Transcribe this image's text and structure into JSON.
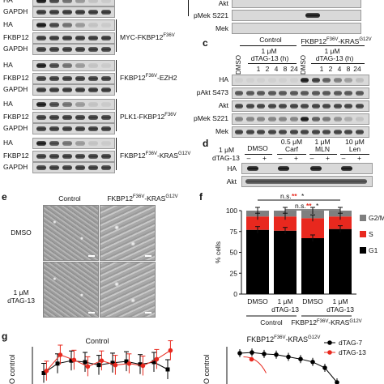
{
  "panel_a_b": {
    "rows": [
      {
        "label": "HA",
        "construct": ""
      },
      {
        "label": "GAPDH",
        "construct": ""
      },
      {
        "label": "HA",
        "construct": "MYC-FKBP12<sup>F36V</sup>"
      },
      {
        "label": "FKBP12",
        "construct": ""
      },
      {
        "label": "GAPDH",
        "construct": ""
      },
      {
        "label": "HA",
        "construct": "FKBP12<sup>F36V</sup>-EZH2"
      },
      {
        "label": "FKBP12",
        "construct": ""
      },
      {
        "label": "GAPDH",
        "construct": ""
      },
      {
        "label": "HA",
        "construct": "PLK1-FKBP12<sup>F36V</sup>"
      },
      {
        "label": "FKBP12",
        "construct": ""
      },
      {
        "label": "GAPDH",
        "construct": ""
      },
      {
        "label": "HA",
        "construct": "FKBP12<sup>F36V</sup>-KRAS<sup>G12V</sup>"
      },
      {
        "label": "FKBP12",
        "construct": ""
      },
      {
        "label": "GAPDH",
        "construct": ""
      }
    ],
    "right_rows": [
      "Akt",
      "pMek S221",
      "Mek"
    ],
    "construct_1": "MYC-FKBP12F36V",
    "construct_2": "FKBP12F36V-EZH2",
    "construct_3": "PLK1-FKBP12F36V",
    "construct_4": "FKBP12F36V-KRASG12V"
  },
  "panel_c": {
    "letter": "c",
    "control": "Control",
    "kras": "FKBP12F36V-KRASG12V",
    "dose": "1 μM",
    "dtag": "dTAG-13 (h)",
    "dmso": "DMSO",
    "times": [
      "1",
      "2",
      "4",
      "8",
      "24"
    ],
    "rows": [
      "HA",
      "pAkt S473",
      "Akt",
      "pMek S221",
      "Mek"
    ]
  },
  "panel_d": {
    "letter": "d",
    "dmso": "DMSO",
    "dose": "1 μM",
    "dtag": "dTAG-13",
    "carf_dose": "0.5 μM",
    "carf": "Carf",
    "mln_dose": "1 μM",
    "mln": "MLN",
    "len_dose": "10 μM",
    "len": "Len",
    "signs": [
      "–",
      "+",
      "–",
      "+",
      "–",
      "+",
      "–",
      "+"
    ],
    "rows": [
      "HA",
      "Akt"
    ]
  },
  "panel_e": {
    "letter": "e",
    "col_control": "Control",
    "col_kras": "FKBP12F36V-KRASG12V",
    "row_dmso": "DMSO",
    "row_dtag_dose": "1 μM",
    "row_dtag": "dTAG-13"
  },
  "panel_f": {
    "letter": "f",
    "sig_top": [
      "n.s.",
      "**",
      "*"
    ],
    "sig_bottom": [
      "n.s.",
      "**",
      "*"
    ],
    "xlabels": [
      [
        "DMSO",
        ""
      ],
      [
        "1 μM",
        "dTAG-13"
      ],
      [
        "DMSO",
        ""
      ],
      [
        "1 μM",
        "dTAG-13"
      ]
    ],
    "group_control": "Control",
    "group_kras": "FKBP12F36V-KRASG12V",
    "ylabel": "% cells",
    "legend": [
      "G2/M",
      "S",
      "G1"
    ]
  },
  "panel_g": {
    "letter": "g",
    "title_left": "Control",
    "title_right": "FKBP12F36V-KRASG12V",
    "legend": [
      "dTAG-7",
      "dTAG-13"
    ],
    "ylabel_fragment": "O control"
  },
  "colors": {
    "g1": "#000000",
    "s": "#e8281e",
    "g2m": "#7f7f7f",
    "dtag7": "#000000",
    "dtag13": "#e8281e"
  },
  "chart_data": [
    {
      "type": "bar",
      "stacked": true,
      "categories": [
        "Control DMSO",
        "Control 1 μM dTAG-13",
        "FKBP12F36V-KRASG12V DMSO",
        "FKBP12F36V-KRASG12V 1 μM dTAG-13"
      ],
      "series": [
        {
          "name": "G1",
          "values": [
            77,
            76,
            67,
            78
          ]
        },
        {
          "name": "S",
          "values": [
            16,
            17,
            24,
            15
          ]
        },
        {
          "name": "G2/M",
          "values": [
            7,
            7,
            9,
            7
          ]
        }
      ],
      "ylabel": "% cells",
      "ylim": [
        0,
        100
      ],
      "yticks": [
        0,
        25,
        50,
        75,
        100
      ],
      "legend_position": "right"
    },
    {
      "type": "scatter",
      "title": "Control",
      "series": [
        {
          "name": "dTAG-7",
          "x": [
            1,
            2,
            3,
            4,
            5,
            6,
            7,
            8,
            9,
            10
          ],
          "y": [
            55,
            68,
            72,
            70,
            66,
            69,
            71,
            67,
            70,
            60
          ]
        },
        {
          "name": "dTAG-13",
          "x": [
            1,
            2,
            3,
            4,
            5,
            6,
            7,
            8,
            9,
            10
          ],
          "y": [
            58,
            80,
            73,
            64,
            72,
            66,
            68,
            65,
            74,
            86
          ]
        }
      ]
    },
    {
      "type": "line",
      "title": "FKBP12F36V-KRASG12V",
      "series": [
        {
          "name": "dTAG-7",
          "x": [
            1,
            2,
            3,
            4,
            5,
            6,
            7,
            8,
            9
          ],
          "y": [
            100,
            101,
            99,
            98,
            95,
            92,
            88,
            80,
            60
          ]
        },
        {
          "name": "dTAG-13",
          "x": [
            1,
            2
          ],
          "y": [
            60,
            40
          ]
        }
      ]
    }
  ]
}
